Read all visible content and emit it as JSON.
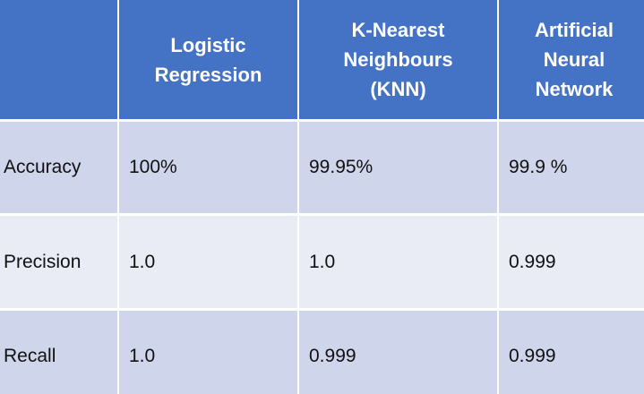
{
  "table": {
    "headers": [
      "",
      "Logistic\nRegression",
      "K-Nearest\nNeighbours\n(KNN)",
      "Artificial\nNeural\nNetwork"
    ],
    "rows": [
      {
        "label": "Accuracy",
        "values": [
          "100%",
          "99.95%",
          "99.9 %"
        ]
      },
      {
        "label": "Precision",
        "values": [
          "1.0",
          "1.0",
          "0.999"
        ]
      },
      {
        "label": "Recall",
        "values": [
          "1.0",
          "0.999",
          "0.999"
        ]
      }
    ],
    "colors": {
      "header_bg": "#4472c4",
      "header_text": "#ffffff",
      "row_odd_bg": "#cfd5ea",
      "row_even_bg": "#e9ebf5"
    }
  }
}
